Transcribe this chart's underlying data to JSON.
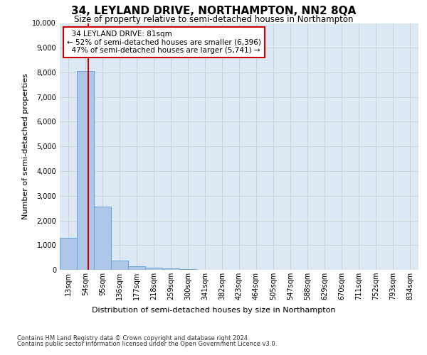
{
  "title": "34, LEYLAND DRIVE, NORTHAMPTON, NN2 8QA",
  "subtitle": "Size of property relative to semi-detached houses in Northampton",
  "xlabel_bottom": "Distribution of semi-detached houses by size in Northampton",
  "ylabel": "Number of semi-detached properties",
  "footnote1": "Contains HM Land Registry data © Crown copyright and database right 2024.",
  "footnote2": "Contains public sector information licensed under the Open Government Licence v3.0.",
  "bin_labels": [
    "13sqm",
    "54sqm",
    "95sqm",
    "136sqm",
    "177sqm",
    "218sqm",
    "259sqm",
    "300sqm",
    "341sqm",
    "382sqm",
    "423sqm",
    "464sqm",
    "505sqm",
    "547sqm",
    "588sqm",
    "629sqm",
    "670sqm",
    "711sqm",
    "752sqm",
    "793sqm",
    "834sqm"
  ],
  "bar_values": [
    1300,
    8050,
    2550,
    375,
    150,
    100,
    60,
    30,
    0,
    0,
    0,
    0,
    0,
    0,
    0,
    0,
    0,
    0,
    0,
    0,
    0
  ],
  "bar_color": "#aec6e8",
  "bar_edge_color": "#5a9fd4",
  "property_line_x": 2,
  "property_line_label": "34 LEYLAND DRIVE: 81sqm",
  "pct_smaller": 52,
  "pct_smaller_n": "6,396",
  "pct_larger": 47,
  "pct_larger_n": "5,741",
  "annotation_box_color": "#ffffff",
  "annotation_box_edge": "#cc0000",
  "red_line_color": "#cc0000",
  "ylim": [
    0,
    10000
  ],
  "yticks": [
    0,
    1000,
    2000,
    3000,
    4000,
    5000,
    6000,
    7000,
    8000,
    9000,
    10000
  ],
  "grid_color": "#cccccc",
  "bg_color": "#dde8f5",
  "title_fontsize": 11,
  "subtitle_fontsize": 8.5,
  "axis_label_fontsize": 8,
  "tick_fontsize": 7,
  "footnote_fontsize": 6
}
